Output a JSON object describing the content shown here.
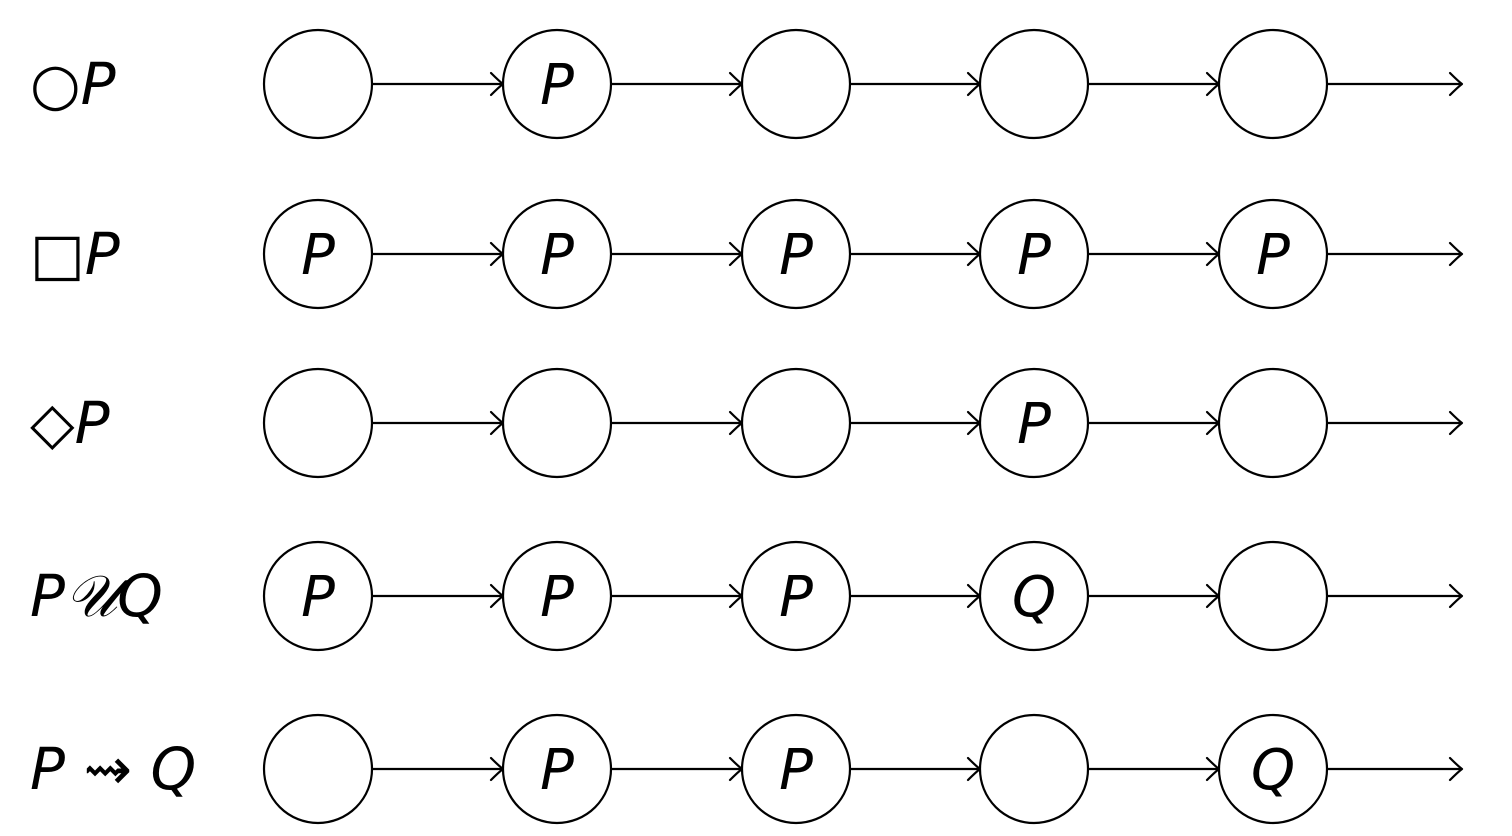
{
  "rows": [
    {
      "label": "○P",
      "states": [
        "",
        "P",
        "",
        "",
        ""
      ]
    },
    {
      "label": "□P",
      "states": [
        "P",
        "P",
        "P",
        "P",
        "P"
      ]
    },
    {
      "label": "◇P",
      "states": [
        "",
        "",
        "",
        "P",
        ""
      ]
    },
    {
      "label": "P𝒰Q",
      "states": [
        "P",
        "P",
        "P",
        "Q",
        ""
      ]
    },
    {
      "label": "P ⇝ Q",
      "states": [
        "",
        "P",
        "P",
        "",
        "Q"
      ]
    }
  ]
}
